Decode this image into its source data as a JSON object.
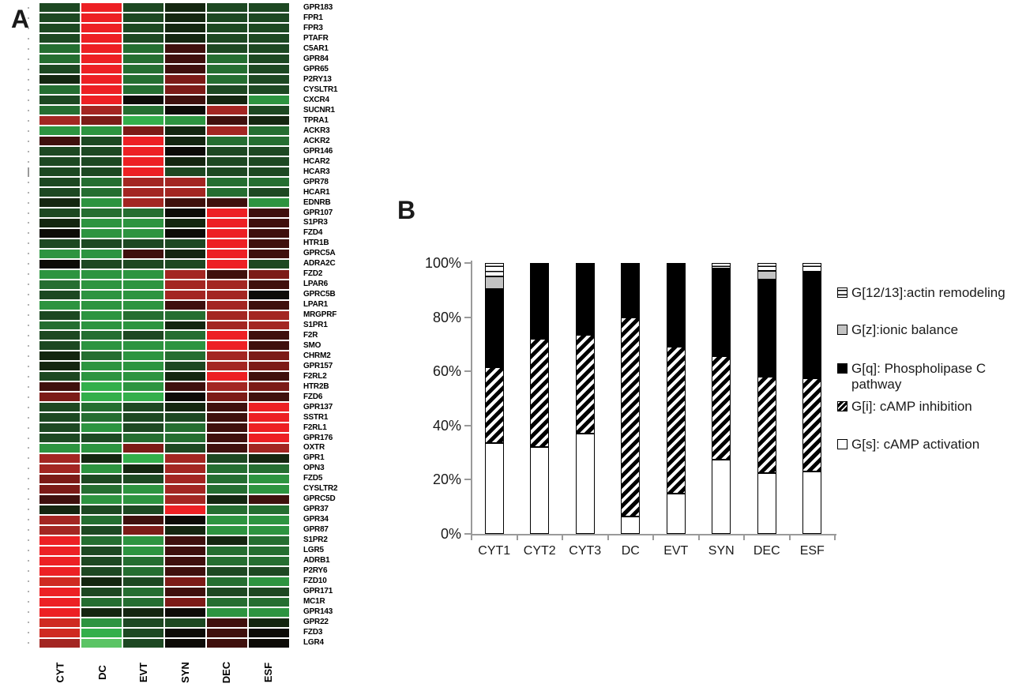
{
  "panel_a": {
    "label": "A",
    "heatmap": {
      "columns": [
        "CYT",
        "DC",
        "EVT",
        "SYN",
        "DEC",
        "ESF"
      ],
      "rows": [
        "GPR183",
        "FPR1",
        "FPR3",
        "PTAFR",
        "C5AR1",
        "GPR84",
        "GPR65",
        "P2RY13",
        "CYSLTR1",
        "CXCR4",
        "SUCNR1",
        "TPRA1",
        "ACKR3",
        "ACKR2",
        "GPR146",
        "HCAR2",
        "HCAR3",
        "GPR78",
        "HCAR1",
        "EDNRB",
        "GPR107",
        "S1PR3",
        "FZD4",
        "HTR1B",
        "GPRC5A",
        "ADRA2C",
        "FZD2",
        "LPAR6",
        "GPRC5B",
        "LPAR1",
        "MRGPRF",
        "S1PR1",
        "F2R",
        "SMO",
        "CHRM2",
        "GPR157",
        "F2RL2",
        "HTR2B",
        "FZD6",
        "GPR137",
        "SSTR1",
        "F2RL1",
        "GPR176",
        "OXTR",
        "GPR1",
        "OPN3",
        "FZD5",
        "CYSLTR2",
        "GPRC5D",
        "GPR37",
        "GPR34",
        "GPR87",
        "S1PR2",
        "LGR5",
        "ADRB1",
        "P2RY6",
        "FZD10",
        "GPR171",
        "MC1R",
        "GPR143",
        "GPR22",
        "FZD3",
        "LGR4"
      ],
      "values": [
        [
          -2,
          5,
          -2,
          -1,
          -2,
          -2
        ],
        [
          -2,
          5,
          -2,
          -1,
          -2,
          -2
        ],
        [
          -2,
          5,
          -2,
          -1,
          -2,
          -2
        ],
        [
          -2,
          5,
          -2,
          -1,
          -2,
          -2
        ],
        [
          -3,
          5,
          -3,
          1,
          -2,
          -2
        ],
        [
          -3,
          5,
          -3,
          1,
          -3,
          -2
        ],
        [
          -2,
          5,
          -3,
          1,
          -3,
          -2
        ],
        [
          -1,
          5,
          -3,
          2,
          -3,
          -2
        ],
        [
          -3,
          5,
          -3,
          2,
          -2,
          -2
        ],
        [
          -2,
          5,
          0,
          1,
          -1,
          -4
        ],
        [
          -3,
          3,
          -3,
          0,
          3,
          -2
        ],
        [
          3,
          2,
          -5,
          -4,
          1,
          -1
        ],
        [
          -4,
          -4,
          2,
          -1,
          3,
          -3
        ],
        [
          1,
          -2,
          5,
          -1,
          -3,
          -3
        ],
        [
          -2,
          -2,
          5,
          0,
          -2,
          -2
        ],
        [
          -2,
          -2,
          5,
          -1,
          -2,
          -2
        ],
        [
          -2,
          -2,
          5,
          -2,
          -2,
          -2
        ],
        [
          -2,
          -3,
          3,
          3,
          -3,
          -3
        ],
        [
          -2,
          -3,
          3,
          3,
          -3,
          -2
        ],
        [
          -1,
          -4,
          3,
          1,
          1,
          -4
        ],
        [
          -2,
          -3,
          -3,
          0,
          5,
          1
        ],
        [
          -1,
          -4,
          -4,
          -1,
          5,
          1
        ],
        [
          0,
          -4,
          -4,
          0,
          5,
          1
        ],
        [
          -2,
          -2,
          -2,
          -2,
          5,
          1
        ],
        [
          -4,
          -4,
          1,
          -1,
          5,
          1
        ],
        [
          0,
          -2,
          -2,
          -2,
          5,
          -2
        ],
        [
          -4,
          -4,
          -4,
          3,
          1,
          2
        ],
        [
          -3,
          -4,
          -4,
          3,
          3,
          1
        ],
        [
          -2,
          -4,
          -4,
          3,
          3,
          0
        ],
        [
          -4,
          -4,
          -4,
          1,
          3,
          1
        ],
        [
          -2,
          -4,
          -3,
          -3,
          3,
          3
        ],
        [
          -3,
          -4,
          -4,
          -1,
          3,
          3
        ],
        [
          -2,
          -3,
          -2,
          -3,
          5,
          1
        ],
        [
          -2,
          -4,
          -4,
          -4,
          5,
          1
        ],
        [
          -1,
          -3,
          -4,
          -3,
          3,
          2
        ],
        [
          -1,
          -4,
          -4,
          -2,
          3,
          2
        ],
        [
          -2,
          -4,
          -4,
          -1,
          5,
          1
        ],
        [
          1,
          -5,
          -4,
          1,
          3,
          2
        ],
        [
          2,
          -5,
          -5,
          0,
          2,
          1
        ],
        [
          -2,
          -3,
          -2,
          -1,
          1,
          5
        ],
        [
          -2,
          -3,
          -2,
          -2,
          1,
          5
        ],
        [
          -2,
          -4,
          -2,
          -3,
          1,
          5
        ],
        [
          -2,
          -2,
          -3,
          -3,
          1,
          5
        ],
        [
          -4,
          -4,
          2,
          -2,
          1,
          3
        ],
        [
          3,
          -1,
          -5,
          3,
          -2,
          -1
        ],
        [
          3,
          -4,
          -1,
          3,
          -3,
          -3
        ],
        [
          2,
          -2,
          -2,
          3,
          -3,
          -4
        ],
        [
          2,
          -3,
          -4,
          3,
          -3,
          -4
        ],
        [
          1,
          -4,
          -4,
          3,
          -1,
          1
        ],
        [
          -1,
          -2,
          -2,
          5,
          -3,
          -3
        ],
        [
          3,
          -3,
          1,
          0,
          -4,
          -4
        ],
        [
          3,
          -2,
          2,
          -1,
          -4,
          -4
        ],
        [
          5,
          -3,
          -4,
          1,
          -1,
          -3
        ],
        [
          5,
          -2,
          -4,
          1,
          -3,
          -3
        ],
        [
          5,
          -2,
          -3,
          1,
          -3,
          -3
        ],
        [
          5,
          -2,
          -3,
          1,
          -2,
          -2
        ],
        [
          4,
          -1,
          -2,
          2,
          -3,
          -4
        ],
        [
          5,
          -2,
          -3,
          1,
          -2,
          -2
        ],
        [
          5,
          -3,
          -3,
          2,
          -3,
          -3
        ],
        [
          5,
          -1,
          -1,
          0,
          -4,
          -4
        ],
        [
          4,
          -4,
          -2,
          -2,
          1,
          -1
        ],
        [
          4,
          -5,
          -2,
          0,
          1,
          0
        ],
        [
          3,
          -6,
          -2,
          0,
          1,
          0
        ]
      ],
      "palette": {
        "5": "#ed2024",
        "4": "#cf2a21",
        "3": "#a32622",
        "2": "#7c1b17",
        "1": "#3f100d",
        "0": "#0d0b07",
        "-1": "#142610",
        "-2": "#1d4822",
        "-3": "#256e31",
        "-4": "#2d9440",
        "-5": "#33af4b",
        "-6": "#5bc465"
      }
    }
  },
  "panel_b": {
    "label": "B"
  },
  "chart_data": {
    "type": "bar",
    "subtype": "stacked-100pct",
    "categories": [
      "CYT1",
      "CYT2",
      "CYT3",
      "DC",
      "EVT",
      "SYN",
      "DEC",
      "ESF"
    ],
    "series": [
      {
        "name": "G[s]: cAMP activation",
        "pattern": "white",
        "values": [
          33.5,
          32,
          37,
          6.5,
          15,
          27.5,
          22.5,
          23
        ]
      },
      {
        "name": "G[i]: cAMP inhibition",
        "pattern": "hatch",
        "values": [
          28,
          40,
          36.5,
          73.5,
          54,
          38,
          35.5,
          34.5
        ]
      },
      {
        "name": "G[q]: Phospholipase C pathway",
        "pattern": "black",
        "values": [
          29,
          28,
          26.5,
          20,
          31,
          32.5,
          36,
          39
        ]
      },
      {
        "name": "G[z]:ionic balance",
        "pattern": "gray",
        "values": [
          4.5,
          0,
          0,
          0,
          0,
          0,
          3,
          0
        ]
      },
      {
        "name": "G[12/13]:actin remodeling",
        "pattern": "hlines",
        "values": [
          5,
          0,
          0,
          0,
          0,
          2,
          3,
          3.5
        ]
      }
    ],
    "y_tick_labels": [
      "100%",
      "80%",
      "60%",
      "40%",
      "20%",
      "0%"
    ],
    "ylim": [
      0,
      100
    ],
    "grid": false,
    "legend_position": "right",
    "legend": [
      {
        "label": "G[12/13]:actin remodeling",
        "swatch": "hlines"
      },
      {
        "label": "G[z]:ionic balance",
        "swatch": "gray"
      },
      {
        "label": "G[q]: Phospholipase C pathway",
        "swatch": "black"
      },
      {
        "label": "G[i]: cAMP inhibition",
        "swatch": "hatch"
      },
      {
        "label": "G[s]: cAMP activation",
        "swatch": "white"
      }
    ],
    "colors": {
      "black": "#000000",
      "gray": "#c3c3c3",
      "white": "#ffffff",
      "axis": "#9a9a9a"
    }
  }
}
